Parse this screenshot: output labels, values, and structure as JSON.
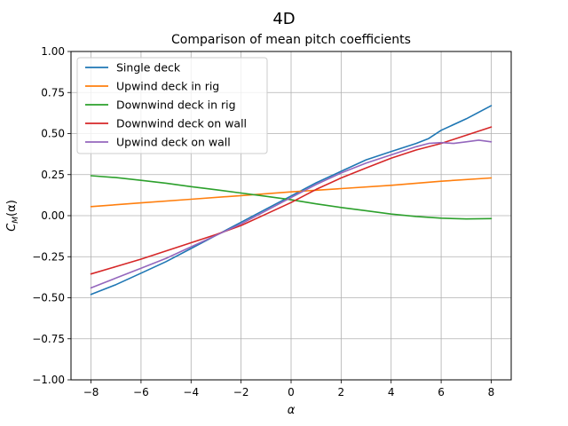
{
  "chart_data": {
    "type": "line",
    "suptitle": "4D",
    "title": "Comparison of mean pitch coefficients",
    "xlabel": "α",
    "ylabel_main": "C",
    "ylabel_sub": "M",
    "ylabel_arg": "(α)",
    "xlim": [
      -8.8,
      8.8
    ],
    "ylim": [
      -1.0,
      1.0
    ],
    "grid": true,
    "legend_position": "upper-left",
    "x_ticks": [
      -8,
      -6,
      -4,
      -2,
      0,
      2,
      4,
      6,
      8
    ],
    "x_tick_labels": [
      "−8",
      "−6",
      "−4",
      "−2",
      "0",
      "2",
      "4",
      "6",
      "8"
    ],
    "y_ticks": [
      -1.0,
      -0.75,
      -0.5,
      -0.25,
      0.0,
      0.25,
      0.5,
      0.75,
      1.0
    ],
    "y_tick_labels": [
      "−1.00",
      "−0.75",
      "−0.50",
      "−0.25",
      "0.00",
      "0.25",
      "0.50",
      "0.75",
      "1.00"
    ],
    "series": [
      {
        "name": "Single deck",
        "color": "#1f77b4",
        "x": [
          -8,
          -7,
          -6,
          -5,
          -4,
          -3,
          -2,
          -1,
          0,
          1,
          2,
          3,
          4,
          5,
          5.5,
          6,
          7,
          8
        ],
        "y": [
          -0.48,
          -0.42,
          -0.35,
          -0.28,
          -0.2,
          -0.12,
          -0.04,
          0.04,
          0.12,
          0.2,
          0.27,
          0.34,
          0.39,
          0.44,
          0.47,
          0.52,
          0.59,
          0.67
        ]
      },
      {
        "name": "Upwind deck in rig",
        "color": "#ff7f0e",
        "x": [
          -8,
          -6,
          -4,
          -2,
          0,
          2,
          4,
          6,
          8
        ],
        "y": [
          0.055,
          0.078,
          0.1,
          0.122,
          0.145,
          0.165,
          0.185,
          0.21,
          0.23
        ]
      },
      {
        "name": "Downwind deck in rig",
        "color": "#2ca02c",
        "x": [
          -8,
          -7,
          -6,
          -5,
          -4,
          -3,
          -2,
          -1,
          0,
          1,
          2,
          3,
          4,
          5,
          6,
          7,
          8
        ],
        "y": [
          0.243,
          0.232,
          0.215,
          0.198,
          0.177,
          0.158,
          0.138,
          0.118,
          0.097,
          0.072,
          0.05,
          0.03,
          0.01,
          -0.005,
          -0.015,
          -0.02,
          -0.018
        ]
      },
      {
        "name": "Downwind deck on wall",
        "color": "#d62728",
        "x": [
          -8,
          -7,
          -6,
          -5,
          -4,
          -3,
          -2,
          -1,
          0,
          1,
          2,
          3,
          4,
          5,
          6,
          7,
          8
        ],
        "y": [
          -0.355,
          -0.31,
          -0.265,
          -0.215,
          -0.165,
          -0.115,
          -0.06,
          0.01,
          0.08,
          0.16,
          0.23,
          0.29,
          0.35,
          0.4,
          0.44,
          0.49,
          0.54
        ]
      },
      {
        "name": "Upwind deck on wall",
        "color": "#9467bd",
        "x": [
          -8,
          -7,
          -6,
          -5,
          -4,
          -3,
          -2,
          -1,
          0,
          1,
          2,
          3,
          4,
          5,
          5.5,
          6,
          6.5,
          7,
          7.5,
          8
        ],
        "y": [
          -0.44,
          -0.38,
          -0.32,
          -0.26,
          -0.19,
          -0.12,
          -0.05,
          0.03,
          0.11,
          0.19,
          0.26,
          0.32,
          0.37,
          0.42,
          0.44,
          0.445,
          0.44,
          0.45,
          0.46,
          0.45
        ]
      }
    ]
  }
}
